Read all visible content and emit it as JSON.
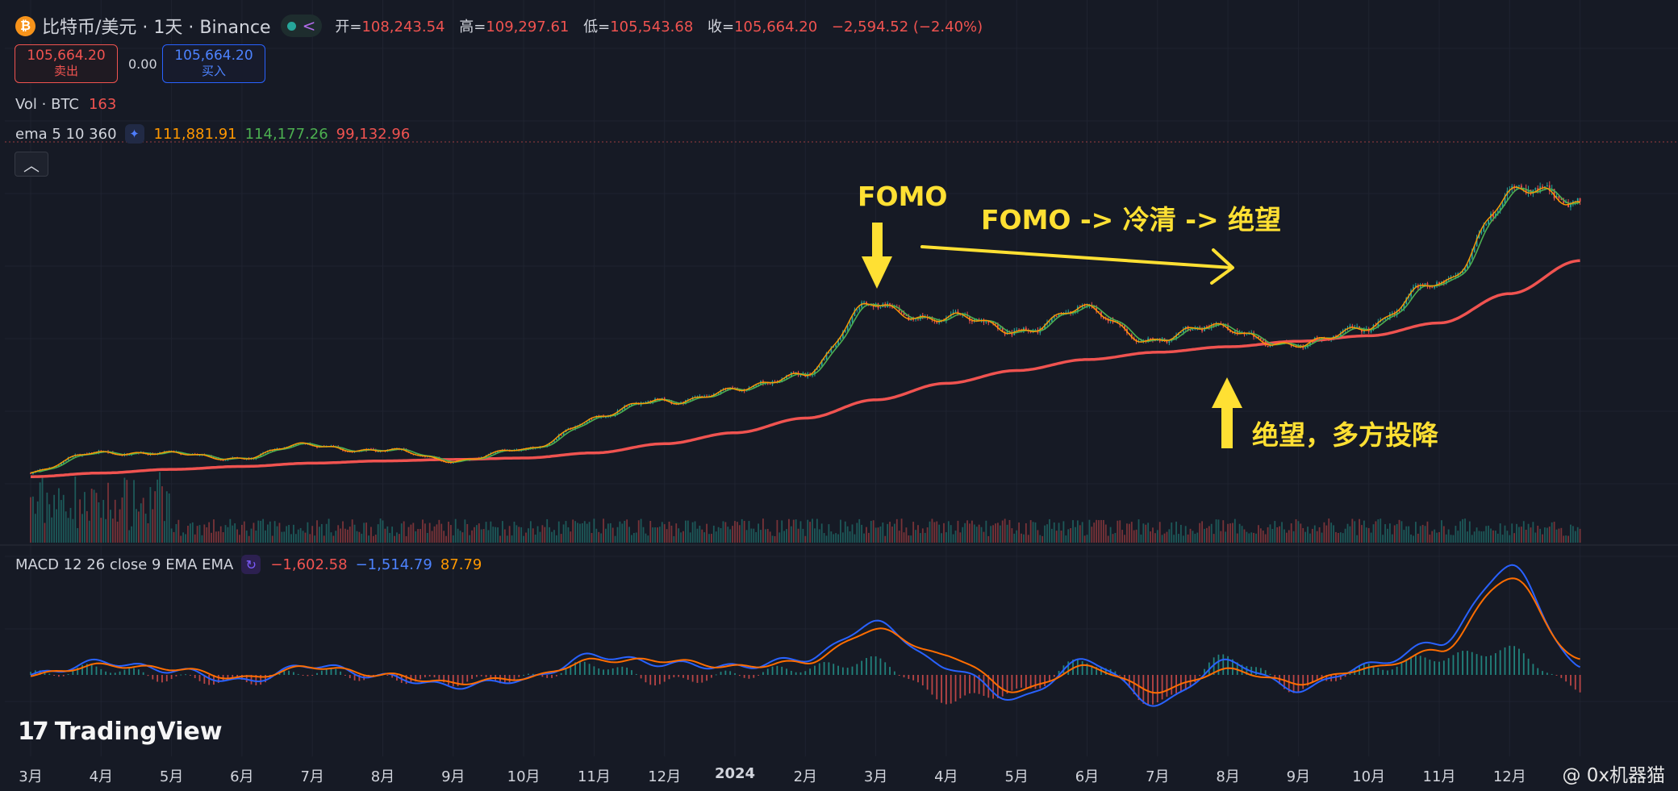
{
  "symbol": {
    "title": "比特币/美元 · 1天 · Binance",
    "coin_icon": "bitcoin-icon",
    "ohlc": [
      {
        "label": "开=",
        "value": "108,243.54"
      },
      {
        "label": "高=",
        "value": "109,297.61"
      },
      {
        "label": "低=",
        "value": "105,543.68"
      },
      {
        "label": "收=",
        "value": "105,664.20"
      }
    ],
    "change": "−2,594.52 (−2.40%)"
  },
  "trade": {
    "sell_price": "105,664.20",
    "sell_label": "卖出",
    "spread": "0.00",
    "buy_price": "105,664.20",
    "buy_label": "买入"
  },
  "volume": {
    "label": "Vol · BTC",
    "value": "163"
  },
  "ema": {
    "label": "ema 5 10 360",
    "v1": "111,881.91",
    "v2": "114,177.26",
    "v3": "99,132.96"
  },
  "macd": {
    "label": "MACD 12 26 close 9 EMA EMA",
    "v1": "−1,602.58",
    "v2": "−1,514.79",
    "v3": "87.79"
  },
  "annotations": {
    "fomo": "FOMO",
    "trend": "FOMO -> 冷清 -> 绝望",
    "despair": "绝望，多方投降"
  },
  "x_axis": [
    "3月",
    "4月",
    "5月",
    "6月",
    "7月",
    "8月",
    "9月",
    "10月",
    "11月",
    "12月",
    "2024",
    "2月",
    "3月",
    "4月",
    "5月",
    "6月",
    "7月",
    "8月",
    "9月",
    "10月",
    "11月",
    "12月"
  ],
  "logo": "TradingView",
  "watermark": "@ 0x机器猫",
  "colors": {
    "background": "#161a25",
    "up": "#26a69a",
    "down": "#ef5350",
    "ema_fast": "#ff9800",
    "ema_mid": "#4caf50",
    "ema_slow": "#f05350",
    "macd_line": "#2962ff",
    "signal_line": "#ff6d00",
    "annotation": "#ffe033"
  },
  "chart_data": {
    "type": "line",
    "x": [
      "2023-03",
      "2023-04",
      "2023-05",
      "2023-06",
      "2023-07",
      "2023-08",
      "2023-09",
      "2023-10",
      "2023-11",
      "2023-12",
      "2024-01",
      "2024-02",
      "2024-03",
      "2024-04",
      "2024-05",
      "2024-06",
      "2024-07",
      "2024-08",
      "2024-09",
      "2024-10",
      "2024-11",
      "2024-12",
      "2025-01"
    ],
    "series": [
      {
        "name": "ema 5",
        "values": [
          22500,
          28500,
          27500,
          26800,
          30200,
          28500,
          26200,
          28500,
          37500,
          42500,
          44500,
          50500,
          68500,
          64500,
          62000,
          66500,
          59000,
          62500,
          56500,
          63500,
          73500,
          98500,
          97000
        ]
      },
      {
        "name": "ema 360",
        "values": [
          21500,
          22500,
          23500,
          24300,
          25200,
          25800,
          26200,
          26600,
          28000,
          30500,
          33500,
          37500,
          42500,
          47000,
          50500,
          53500,
          55500,
          57000,
          58500,
          60000,
          63500,
          71500,
          80500
        ]
      },
      {
        "name": "MACD",
        "values": [
          0,
          800,
          300,
          -400,
          600,
          -100,
          -700,
          -300,
          1200,
          700,
          500,
          1000,
          3200,
          500,
          -1500,
          900,
          -1800,
          800,
          -900,
          600,
          2000,
          6700,
          500
        ]
      },
      {
        "name": "signal",
        "values": [
          0,
          600,
          400,
          -200,
          500,
          0,
          -500,
          -200,
          900,
          900,
          500,
          800,
          2800,
          1200,
          -1000,
          500,
          -1000,
          300,
          -500,
          400,
          1500,
          6000,
          900
        ]
      }
    ],
    "annotations": [
      "FOMO",
      "FOMO -> 冷清 -> 绝望",
      "绝望，多方投降"
    ]
  }
}
